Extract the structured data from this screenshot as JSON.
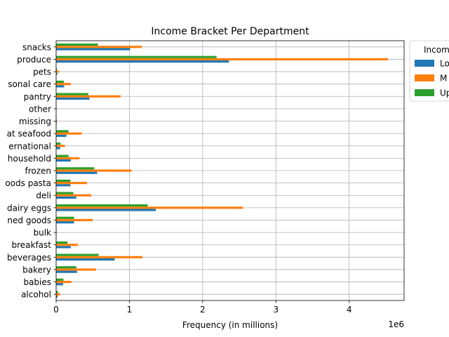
{
  "chart_data": {
    "type": "bar",
    "orientation": "horizontal",
    "title": "Income Bracket Per Department",
    "xlabel": "Frequency (in millions)",
    "ylabel": "",
    "x_offset_label": "1e6",
    "xlim": [
      0,
      4750000
    ],
    "x_ticks": [
      0,
      1000000,
      2000000,
      3000000,
      4000000
    ],
    "x_tick_labels": [
      "0",
      "1",
      "2",
      "3",
      "4"
    ],
    "grid": true,
    "legend_title": "Incom",
    "legend_placement": "outside-top-right",
    "categories": [
      "alcohol",
      "babies",
      "bakery",
      "beverages",
      "breakfast",
      "bulk",
      "canned goods",
      "dairy eggs",
      "deli",
      "dry goods pasta",
      "frozen",
      "household",
      "international",
      "meat seafood",
      "missing",
      "other",
      "pantry",
      "personal care",
      "pets",
      "produce",
      "snacks"
    ],
    "category_labels": [
      "alcohol",
      "babies",
      "bakery",
      "beverages",
      "breakfast",
      "bulk",
      "ned goods",
      "dairy eggs",
      "deli",
      "oods pasta",
      "frozen",
      "household",
      "ernational",
      "at seafood",
      "missing",
      "other",
      "pantry",
      "sonal care",
      "pets",
      "produce",
      "snacks"
    ],
    "series": [
      {
        "name": "Lo",
        "color": "#1f77b4",
        "values": [
          20000,
          95000,
          285000,
          800000,
          200000,
          5000,
          245000,
          1360000,
          275000,
          195000,
          560000,
          200000,
          55000,
          140000,
          8000,
          5000,
          455000,
          110000,
          15000,
          2360000,
          1010000
        ]
      },
      {
        "name": "M",
        "color": "#ff7f0e",
        "values": [
          55000,
          210000,
          545000,
          1180000,
          300000,
          8000,
          500000,
          2550000,
          480000,
          420000,
          1030000,
          320000,
          120000,
          350000,
          12000,
          8000,
          880000,
          200000,
          40000,
          4530000,
          1170000
        ]
      },
      {
        "name": "Up",
        "color": "#2ca02c",
        "values": [
          25000,
          100000,
          275000,
          580000,
          155000,
          5000,
          245000,
          1250000,
          235000,
          195000,
          520000,
          170000,
          60000,
          170000,
          6000,
          4000,
          440000,
          105000,
          10000,
          2190000,
          570000
        ]
      }
    ]
  }
}
